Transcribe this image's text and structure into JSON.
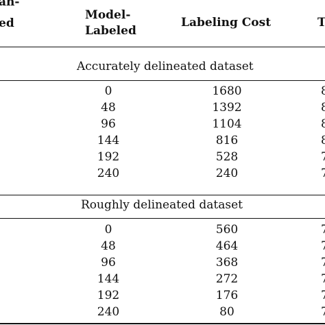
{
  "table": {
    "headers": {
      "human_labeled_line1": "an-",
      "human_labeled_line2": "ed",
      "model_labeled_line1": "Model-",
      "model_labeled_line2": "Labeled",
      "labeling_cost": "Labeling Cost",
      "truncated_right": "T"
    },
    "sections": [
      {
        "title": "Accurately delineated dataset",
        "rows": [
          {
            "model_labeled": "0",
            "labeling_cost": "1680",
            "right_edge": "8"
          },
          {
            "model_labeled": "48",
            "labeling_cost": "1392",
            "right_edge": "8"
          },
          {
            "model_labeled": "96",
            "labeling_cost": "1104",
            "right_edge": "8"
          },
          {
            "model_labeled": "144",
            "labeling_cost": "816",
            "right_edge": "8"
          },
          {
            "model_labeled": "192",
            "labeling_cost": "528",
            "right_edge": "7"
          },
          {
            "model_labeled": "240",
            "labeling_cost": "240",
            "right_edge": "7"
          }
        ]
      },
      {
        "title": "Roughly delineated dataset",
        "rows": [
          {
            "model_labeled": "0",
            "labeling_cost": "560",
            "right_edge": "7"
          },
          {
            "model_labeled": "48",
            "labeling_cost": "464",
            "right_edge": "7"
          },
          {
            "model_labeled": "96",
            "labeling_cost": "368",
            "right_edge": "7"
          },
          {
            "model_labeled": "144",
            "labeling_cost": "272",
            "right_edge": "7"
          },
          {
            "model_labeled": "192",
            "labeling_cost": "176",
            "right_edge": "7"
          },
          {
            "model_labeled": "240",
            "labeling_cost": "80",
            "right_edge": "7"
          }
        ]
      }
    ]
  }
}
